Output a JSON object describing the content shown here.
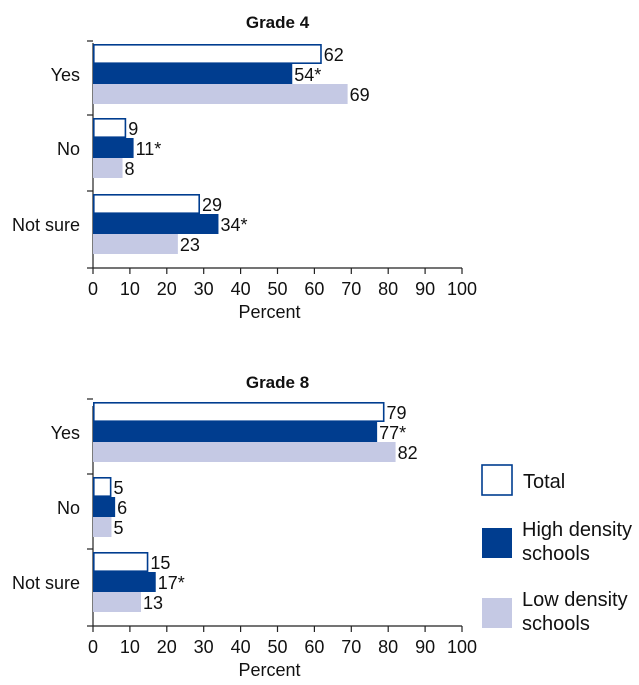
{
  "chart_data": [
    {
      "type": "bar",
      "orientation": "horizontal",
      "title": "Grade 4",
      "categories": [
        "Yes",
        "No",
        "Not sure"
      ],
      "xlabel": "Percent",
      "xlim": [
        0,
        100
      ],
      "xticks": [
        0,
        10,
        20,
        30,
        40,
        50,
        60,
        70,
        80,
        90,
        100
      ],
      "series": [
        {
          "name": "Total",
          "values": [
            62,
            9,
            29
          ],
          "labels": [
            "62",
            "9",
            "29"
          ]
        },
        {
          "name": "High density schools",
          "values": [
            54,
            11,
            34
          ],
          "labels": [
            "54*",
            "11*",
            "34*"
          ]
        },
        {
          "name": "Low density schools",
          "values": [
            69,
            8,
            23
          ],
          "labels": [
            "69",
            "8",
            "23"
          ]
        }
      ]
    },
    {
      "type": "bar",
      "orientation": "horizontal",
      "title": "Grade 8",
      "categories": [
        "Yes",
        "No",
        "Not sure"
      ],
      "xlabel": "Percent",
      "xlim": [
        0,
        100
      ],
      "xticks": [
        0,
        10,
        20,
        30,
        40,
        50,
        60,
        70,
        80,
        90,
        100
      ],
      "series": [
        {
          "name": "Total",
          "values": [
            79,
            5,
            15
          ],
          "labels": [
            "79",
            "5",
            "15"
          ]
        },
        {
          "name": "High density schools",
          "values": [
            77,
            6,
            17
          ],
          "labels": [
            "77*",
            "6",
            "17*"
          ]
        },
        {
          "name": "Low density schools",
          "values": [
            82,
            5,
            13
          ],
          "labels": [
            "82",
            "5",
            "13"
          ]
        }
      ]
    }
  ],
  "legend": {
    "items": [
      {
        "lines": [
          "Total"
        ],
        "style": "outline"
      },
      {
        "lines": [
          "High density",
          "schools"
        ],
        "style": "dark"
      },
      {
        "lines": [
          "Low density",
          "schools"
        ],
        "style": "light"
      }
    ],
    "placement": "right"
  },
  "colors": {
    "total_fill": "#ffffff",
    "total_stroke": "#003d8f",
    "high_density": "#003d8f",
    "low_density": "#c5c9e4",
    "axis": "#222222"
  }
}
